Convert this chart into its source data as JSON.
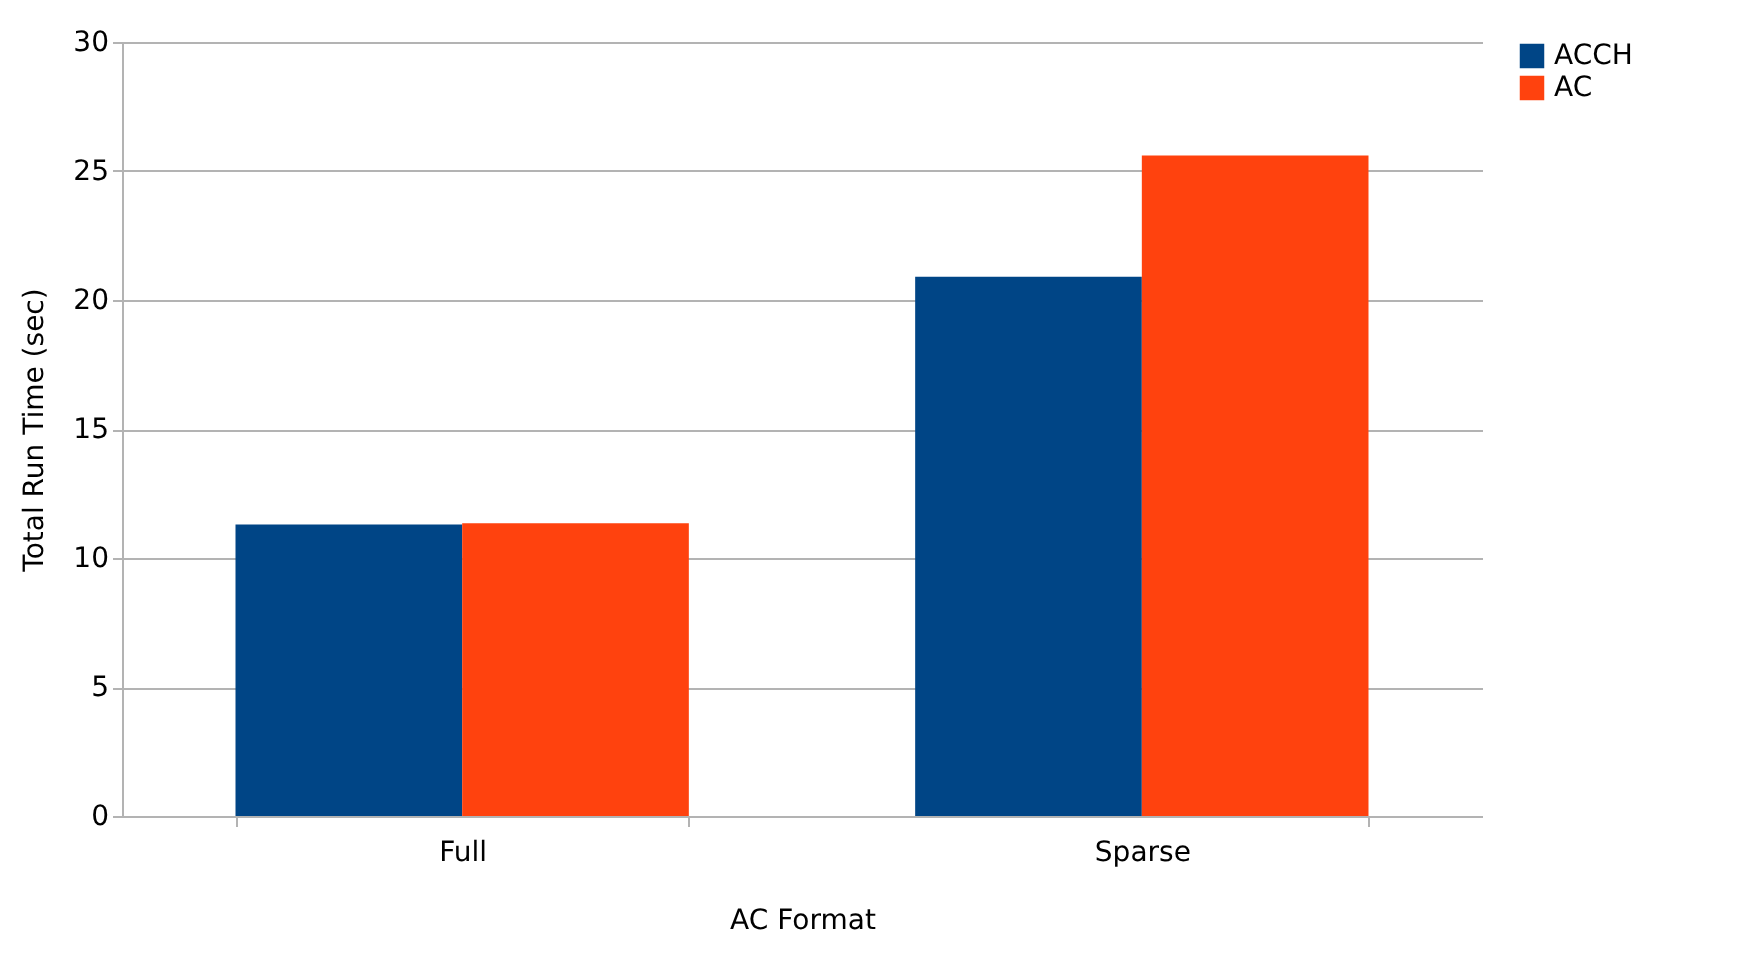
{
  "chart_data": {
    "type": "bar",
    "xlabel": "AC Format",
    "ylabel": "Total Run Time (sec)",
    "categories": [
      "Full",
      "Sparse"
    ],
    "series": [
      {
        "name": "ACCH",
        "color": "#004586",
        "values": [
          11.3,
          20.9
        ]
      },
      {
        "name": "AC",
        "color": "#ff420e",
        "values": [
          11.35,
          25.6
        ]
      }
    ],
    "ylim": [
      0,
      30
    ],
    "yticks": [
      0,
      5,
      10,
      15,
      20,
      25,
      30
    ],
    "grid": "y",
    "legend": "right"
  }
}
